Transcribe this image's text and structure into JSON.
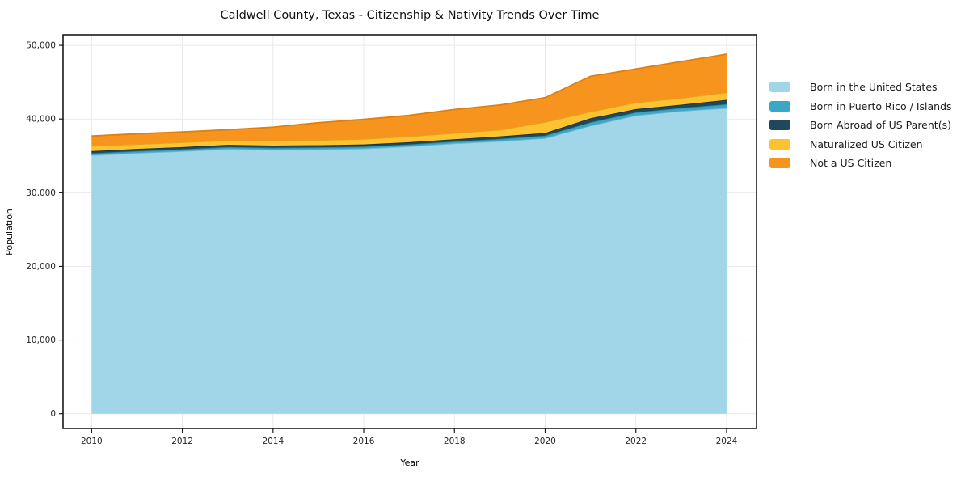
{
  "chart_data": {
    "type": "area",
    "stacked": true,
    "title": "Caldwell County, Texas - Citizenship & Nativity Trends Over Time",
    "xlabel": "Year",
    "ylabel": "Population",
    "x": [
      2010,
      2011,
      2012,
      2013,
      2014,
      2015,
      2016,
      2017,
      2018,
      2019,
      2020,
      2021,
      2022,
      2023,
      2024
    ],
    "series": [
      {
        "name": "Born in the United States",
        "color": "#a1d6e8",
        "edge": "#74b9d1",
        "values": [
          35100,
          35400,
          35650,
          35950,
          35850,
          35900,
          36000,
          36300,
          36700,
          37000,
          37400,
          39100,
          40500,
          41100,
          41500
        ]
      },
      {
        "name": "Born in Puerto Rico / Islands",
        "color": "#3ba7c6",
        "edge": "#2b8aa6",
        "values": [
          250,
          250,
          250,
          250,
          250,
          250,
          250,
          250,
          250,
          300,
          350,
          450,
          400,
          400,
          500
        ]
      },
      {
        "name": "Born Abroad of US Parent(s)",
        "color": "#20485c",
        "edge": "#163243",
        "values": [
          300,
          300,
          300,
          300,
          300,
          300,
          300,
          300,
          300,
          350,
          350,
          550,
          450,
          450,
          600
        ]
      },
      {
        "name": "Naturalized US Citizen",
        "color": "#fdc22f",
        "edge": "#e0a51c",
        "values": [
          700,
          650,
          650,
          600,
          650,
          700,
          750,
          800,
          850,
          900,
          1500,
          900,
          900,
          900,
          1000
        ]
      },
      {
        "name": "Not a US Citizen",
        "color": "#f7941e",
        "edge": "#e07f10",
        "values": [
          1350,
          1400,
          1400,
          1450,
          1850,
          2350,
          2650,
          2850,
          3200,
          3350,
          3300,
          4800,
          4550,
          4950,
          5200
        ]
      }
    ],
    "xticks": {
      "values": [
        2010,
        2012,
        2014,
        2016,
        2018,
        2020,
        2022,
        2024
      ],
      "labels": [
        "2010",
        "2012",
        "2014",
        "2016",
        "2018",
        "2020",
        "2022",
        "2024"
      ]
    },
    "yticks": {
      "values": [
        0,
        10000,
        20000,
        30000,
        40000,
        50000
      ],
      "labels": [
        "0",
        "10,000",
        "20,000",
        "30,000",
        "40,000",
        "50,000"
      ]
    },
    "xlim": [
      2009.37,
      2024.66
    ],
    "ylim": [
      -2008,
      51438
    ],
    "grid": true,
    "legend_position": "right",
    "colors": {
      "grid": "#e9e9e9",
      "spine": "#1a1a1a",
      "tick_label": "#262626",
      "title": "#111111"
    }
  }
}
